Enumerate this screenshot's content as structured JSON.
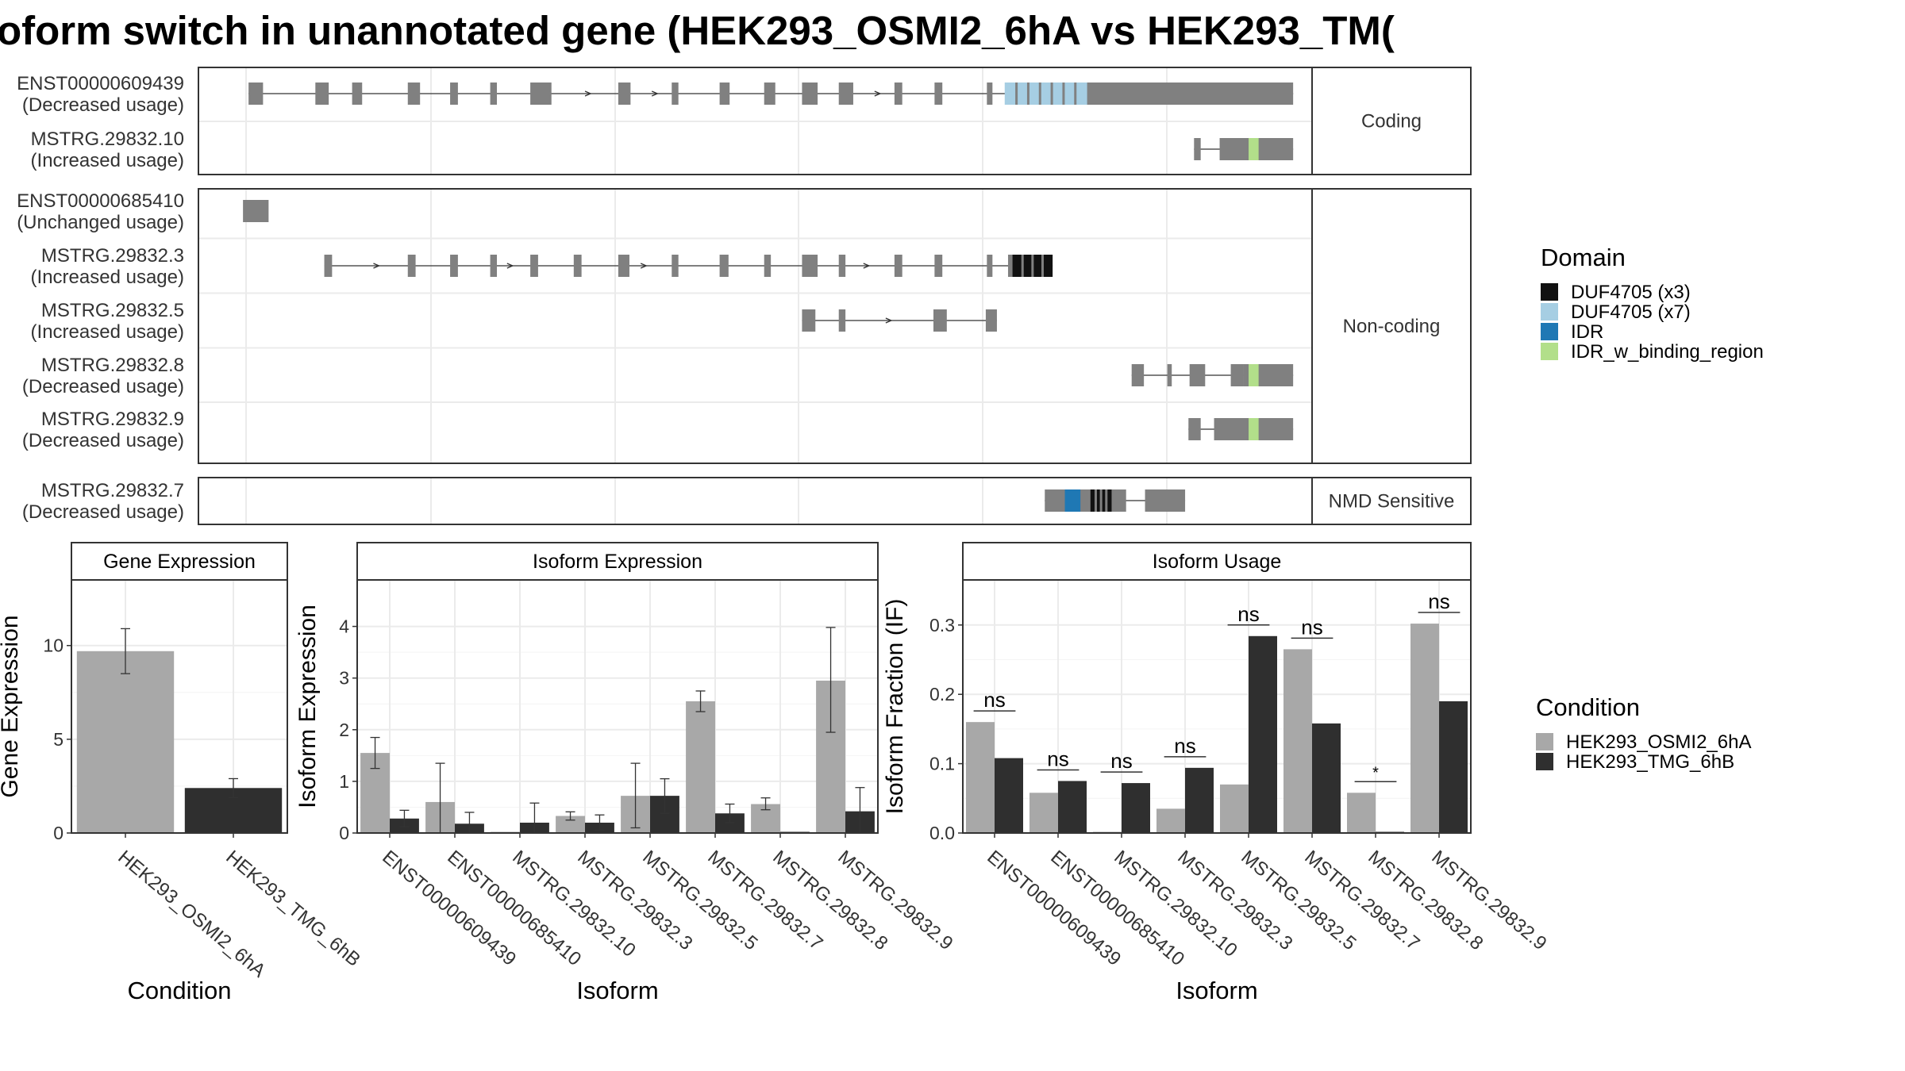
{
  "title": "oform switch in unannotated gene (HEK293_OSMI2_6hA vs HEK293_TM(",
  "colors": {
    "cond1": "#a8a8a8",
    "cond2": "#2f2f2f",
    "exon": "#808080",
    "grid": "#ebebeb",
    "strip": "#ffffff",
    "border": "#333333"
  },
  "legend_domain": {
    "title": "Domain",
    "items": [
      {
        "label": "DUF4705 (x3)",
        "color": "#111111"
      },
      {
        "label": "DUF4705 (x7)",
        "color": "#a6cee3"
      },
      {
        "label": "IDR",
        "color": "#1f78b4"
      },
      {
        "label": "IDR_w_binding_region",
        "color": "#b2df8a"
      }
    ]
  },
  "legend_condition": {
    "title": "Condition",
    "items": [
      {
        "label": "HEK293_OSMI2_6hA",
        "color": "#a8a8a8"
      },
      {
        "label": "HEK293_TMG_6hB",
        "color": "#2f2f2f"
      }
    ]
  },
  "chart_data": [
    {
      "type": "gene_structure",
      "panels": [
        {
          "strip": "Coding",
          "isoforms": [
            {
              "id": "ENST00000609439",
              "usage": "(Decreased usage)",
              "exons": [
                [
                  0.045,
                  0.058
                ],
                [
                  0.105,
                  0.117
                ],
                [
                  0.138,
                  0.147
                ],
                [
                  0.188,
                  0.199
                ],
                [
                  0.226,
                  0.233
                ],
                [
                  0.262,
                  0.268
                ],
                [
                  0.298,
                  0.317
                ],
                [
                  0.377,
                  0.388
                ],
                [
                  0.425,
                  0.431
                ],
                [
                  0.468,
                  0.477
                ],
                [
                  0.508,
                  0.518
                ],
                [
                  0.542,
                  0.556
                ],
                [
                  0.575,
                  0.588
                ],
                [
                  0.625,
                  0.632
                ],
                [
                  0.661,
                  0.668
                ],
                [
                  0.708,
                  0.713
                ],
                [
                  0.727,
                  0.743
                ],
                [
                  0.743,
                  0.983
                ]
              ],
              "domains": [
                {
                  "name": "DUF4705 (x7)",
                  "from": 0.724,
                  "to": 0.798
                }
              ],
              "arrows": [
                0.35,
                0.41,
                0.61
              ]
            },
            {
              "id": "MSTRG.29832.10",
              "usage": "(Increased usage)",
              "exons": [
                [
                  0.894,
                  0.9
                ],
                [
                  0.917,
                  0.933
                ],
                [
                  0.933,
                  0.983
                ]
              ],
              "domains": [
                {
                  "name": "IDR_w_binding_region",
                  "from": 0.943,
                  "to": 0.952
                }
              ],
              "arrows": []
            }
          ]
        },
        {
          "strip": "Non-coding",
          "isoforms": [
            {
              "id": "ENST00000685410",
              "usage": "(Unchanged usage)",
              "exons": [
                [
                  0.04,
                  0.063
                ]
              ],
              "domains": [],
              "arrows": []
            },
            {
              "id": "MSTRG.29832.3",
              "usage": "(Increased usage)",
              "exons": [
                [
                  0.113,
                  0.12
                ],
                [
                  0.188,
                  0.195
                ],
                [
                  0.226,
                  0.233
                ],
                [
                  0.262,
                  0.268
                ],
                [
                  0.298,
                  0.305
                ],
                [
                  0.337,
                  0.344
                ],
                [
                  0.377,
                  0.387
                ],
                [
                  0.425,
                  0.431
                ],
                [
                  0.468,
                  0.476
                ],
                [
                  0.508,
                  0.514
                ],
                [
                  0.542,
                  0.556
                ],
                [
                  0.575,
                  0.581
                ],
                [
                  0.625,
                  0.632
                ],
                [
                  0.661,
                  0.668
                ],
                [
                  0.708,
                  0.713
                ],
                [
                  0.727,
                  0.743
                ],
                [
                  0.743,
                  0.767
                ]
              ],
              "domains": [
                {
                  "name": "DUF4705 (x3)",
                  "from": 0.731,
                  "to": 0.767
                }
              ],
              "arrows": [
                0.16,
                0.28,
                0.4,
                0.6
              ]
            },
            {
              "id": "MSTRG.29832.5",
              "usage": "(Increased usage)",
              "exons": [
                [
                  0.542,
                  0.554
                ],
                [
                  0.575,
                  0.581
                ],
                [
                  0.66,
                  0.672
                ],
                [
                  0.707,
                  0.717
                ]
              ],
              "domains": [],
              "arrows": [
                0.62
              ]
            },
            {
              "id": "MSTRG.29832.8",
              "usage": "(Decreased usage)",
              "exons": [
                [
                  0.838,
                  0.849
                ],
                [
                  0.87,
                  0.874
                ],
                [
                  0.89,
                  0.904
                ],
                [
                  0.927,
                  0.938
                ],
                [
                  0.938,
                  0.983
                ]
              ],
              "domains": [
                {
                  "name": "IDR_w_binding_region",
                  "from": 0.943,
                  "to": 0.952
                }
              ],
              "arrows": []
            },
            {
              "id": "MSTRG.29832.9",
              "usage": "(Decreased usage)",
              "exons": [
                [
                  0.889,
                  0.9
                ],
                [
                  0.912,
                  0.933
                ],
                [
                  0.933,
                  0.983
                ]
              ],
              "domains": [
                {
                  "name": "IDR_w_binding_region",
                  "from": 0.943,
                  "to": 0.952
                }
              ],
              "arrows": []
            }
          ]
        },
        {
          "strip": "NMD Sensitive",
          "isoforms": [
            {
              "id": "MSTRG.29832.7",
              "usage": "(Decreased usage)",
              "exons": [
                [
                  0.76,
                  0.778
                ],
                [
                  0.778,
                  0.82
                ],
                [
                  0.82,
                  0.833
                ],
                [
                  0.85,
                  0.886
                ]
              ],
              "domains": [
                {
                  "name": "IDR",
                  "from": 0.778,
                  "to": 0.792
                },
                {
                  "name": "DUF4705 (x3)",
                  "from": 0.801,
                  "to": 0.82
                }
              ],
              "arrows": []
            }
          ]
        }
      ]
    },
    {
      "type": "bar",
      "title": "Gene Expression",
      "xlabel": "Condition",
      "ylabel": "Gene Expression",
      "ylim": [
        0,
        13.5
      ],
      "yticks": [
        0,
        5,
        10
      ],
      "categories": [
        "HEK293_OSMI2_6hA",
        "HEK293_TMG_6hB"
      ],
      "values": [
        9.7,
        2.4
      ],
      "errors": [
        [
          8.5,
          10.9
        ],
        [
          1.9,
          2.9
        ]
      ]
    },
    {
      "type": "bar",
      "title": "Isoform Expression",
      "xlabel": "Isoform",
      "ylabel": "Isoform Expression",
      "ylim": [
        0,
        4.9
      ],
      "yticks": [
        0,
        1,
        2,
        3,
        4
      ],
      "categories": [
        "ENST00000609439",
        "ENST00000685410",
        "MSTRG.29832.10",
        "MSTRG.29832.3",
        "MSTRG.29832.5",
        "MSTRG.29832.7",
        "MSTRG.29832.8",
        "MSTRG.29832.9"
      ],
      "series": [
        {
          "name": "HEK293_OSMI2_6hA",
          "values": [
            1.55,
            0.6,
            0.0,
            0.33,
            0.72,
            2.55,
            0.56,
            2.95
          ],
          "errors": [
            [
              1.25,
              1.85
            ],
            [
              0.0,
              1.35
            ],
            [
              0.0,
              0.0
            ],
            [
              0.25,
              0.41
            ],
            [
              0.1,
              1.35
            ],
            [
              2.35,
              2.75
            ],
            [
              0.45,
              0.68
            ],
            [
              1.95,
              3.98
            ]
          ]
        },
        {
          "name": "HEK293_TMG_6hB",
          "values": [
            0.28,
            0.18,
            0.2,
            0.2,
            0.72,
            0.38,
            0.0,
            0.42
          ],
          "errors": [
            [
              0.12,
              0.44
            ],
            [
              0.0,
              0.4
            ],
            [
              0.0,
              0.58
            ],
            [
              0.05,
              0.35
            ],
            [
              0.38,
              1.05
            ],
            [
              0.2,
              0.56
            ],
            [
              0.0,
              0.0
            ],
            [
              0.0,
              0.88
            ]
          ]
        }
      ]
    },
    {
      "type": "bar",
      "title": "Isoform Usage",
      "xlabel": "Isoform",
      "ylabel": "Isoform Fraction (IF)",
      "ylim": [
        0,
        0.365
      ],
      "yticks": [
        0.0,
        0.1,
        0.2,
        0.3
      ],
      "ytick_labels": [
        "0.0",
        "0.1",
        "0.2",
        "0.3"
      ],
      "categories": [
        "ENST00000609439",
        "ENST00000685410",
        "MSTRG.29832.10",
        "MSTRG.29832.3",
        "MSTRG.29832.5",
        "MSTRG.29832.7",
        "MSTRG.29832.8",
        "MSTRG.29832.9"
      ],
      "series": [
        {
          "name": "HEK293_OSMI2_6hA",
          "values": [
            0.16,
            0.058,
            0.0,
            0.035,
            0.07,
            0.265,
            0.058,
            0.302
          ]
        },
        {
          "name": "HEK293_TMG_6hB",
          "values": [
            0.108,
            0.075,
            0.072,
            0.094,
            0.284,
            0.158,
            0.0,
            0.19
          ]
        }
      ],
      "significance": [
        "ns",
        "ns",
        "ns",
        "ns",
        "ns",
        "ns",
        "*",
        "ns"
      ]
    }
  ]
}
